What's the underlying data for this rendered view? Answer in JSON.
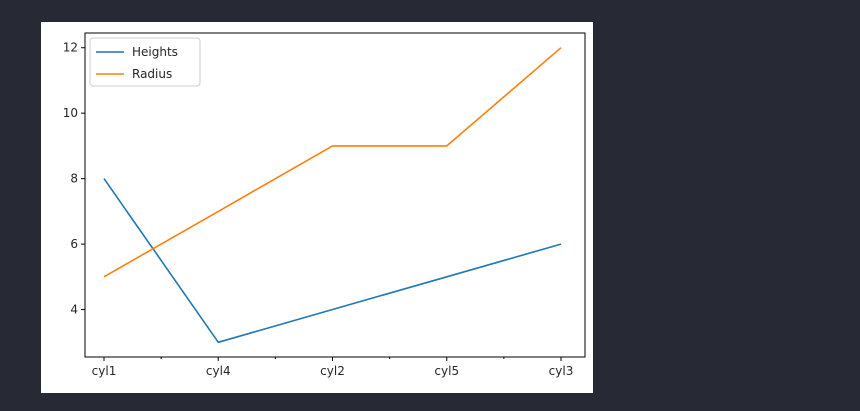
{
  "chart_data": {
    "type": "line",
    "categories": [
      "cyl1",
      "cyl4",
      "cyl2",
      "cyl5",
      "cyl3"
    ],
    "series": [
      {
        "name": "Heights",
        "values": [
          8,
          3,
          4,
          5,
          6
        ],
        "color": "#1f77b4"
      },
      {
        "name": "Radius",
        "values": [
          5,
          7,
          9,
          9,
          12
        ],
        "color": "#ff7f0e"
      }
    ],
    "ylim": [
      2.55,
      12.45
    ],
    "yticks": [
      4,
      6,
      8,
      10,
      12
    ],
    "ytick_labels": [
      "4",
      "6",
      "8",
      "10",
      "12"
    ],
    "minor_xticks": true,
    "grid": false,
    "legend": "top-left",
    "title": "",
    "xlabel": "",
    "ylabel": ""
  }
}
